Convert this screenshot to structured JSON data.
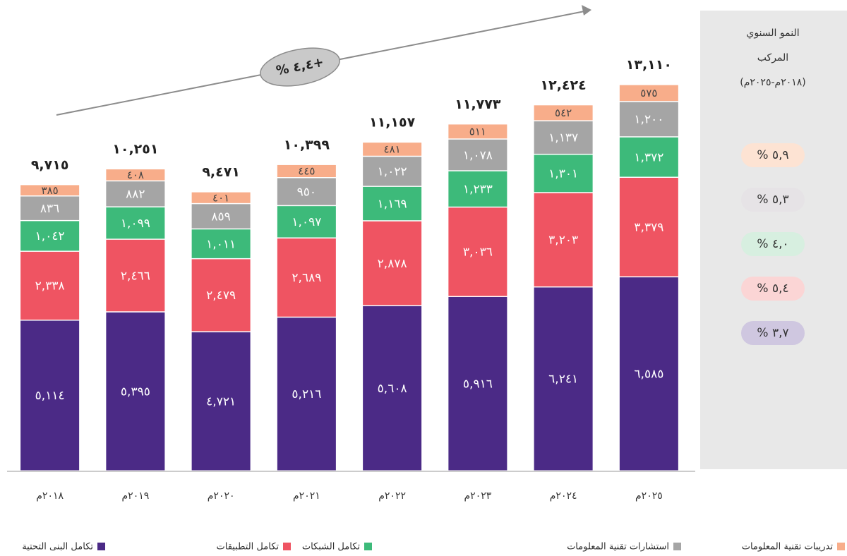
{
  "chart_data": {
    "type": "stacked_bar",
    "annotation": "% ٤,٤+",
    "categories": [
      "٢٠١٨م",
      "٢٠١٩م",
      "٢٠٢٠م",
      "٢٠٢١م",
      "٢٠٢٢م",
      "٢٠٢٣م",
      "٢٠٢٤م",
      "٢٠٢٥م"
    ],
    "ylim": [
      0,
      16000
    ],
    "series": [
      {
        "name": "تكامل البنى التحتية",
        "color": "#4b2a86",
        "cagr_label": "% ٣,٧",
        "cagr_color": "#cfc7e0",
        "values": [
          5114,
          5395,
          4721,
          5216,
          5608,
          5916,
          6241,
          6585
        ],
        "value_labels": [
          "٥,١١٤",
          "٥,٣٩٥",
          "٤,٧٢١",
          "٥,٢١٦",
          "٥,٦٠٨",
          "٥,٩١٦",
          "٦,٢٤١",
          "٦,٥٨٥"
        ]
      },
      {
        "name": "تكامل التطبيقات",
        "color": "#ef5462",
        "cagr_label": "% ٥,٤",
        "cagr_color": "#fbd5d5",
        "values": [
          2338,
          2466,
          2479,
          2689,
          2878,
          3036,
          3203,
          3379
        ],
        "value_labels": [
          "٢,٣٣٨",
          "٢,٤٦٦",
          "٢,٤٧٩",
          "٢,٦٨٩",
          "٢,٨٧٨",
          "٣,٠٣٦",
          "٣,٢٠٣",
          "٣,٣٧٩"
        ]
      },
      {
        "name": "تكامل الشبكات",
        "color": "#3dba7a",
        "cagr_label": "% ٤,٠",
        "cagr_color": "#d7efe0",
        "values": [
          1042,
          1099,
          1011,
          1097,
          1169,
          1233,
          1301,
          1372
        ],
        "value_labels": [
          "١,٠٤٢",
          "١,٠٩٩",
          "١,٠١١",
          "١,٠٩٧",
          "١,١٦٩",
          "١,٢٣٣",
          "١,٣٠١",
          "١,٣٧٢"
        ]
      },
      {
        "name": "استشارات تقنية المعلومات",
        "color": "#a5a5a5",
        "cagr_label": "% ٥,٣",
        "cagr_color": "#e6e3e6",
        "values": [
          836,
          882,
          859,
          950,
          1022,
          1078,
          1137,
          1200
        ],
        "value_labels": [
          "٨٣٦",
          "٨٨٢",
          "٨٥٩",
          "٩٥٠",
          "١,٠٢٢",
          "١,٠٧٨",
          "١,١٣٧",
          "١,٢٠٠"
        ]
      },
      {
        "name": "تدريبات تقنية المعلومات",
        "color": "#f8ad8a",
        "cagr_label": "% ٥,٩",
        "cagr_color": "#fde3d3",
        "values": [
          385,
          408,
          401,
          445,
          481,
          511,
          542,
          575
        ],
        "value_labels": [
          "٣٨٥",
          "٤٠٨",
          "٤٠١",
          "٤٤٥",
          "٤٨١",
          "٥١١",
          "٥٤٢",
          "٥٧٥"
        ]
      }
    ],
    "totals": [
      9715,
      10251,
      9471,
      10399,
      11157,
      11773,
      12424,
      13110
    ],
    "total_labels": [
      "٩,٧١٥",
      "١٠,٢٥١",
      "٩,٤٧١",
      "١٠,٣٩٩",
      "١١,١٥٧",
      "١١,٧٧٣",
      "١٢,٤٢٤",
      "١٣,١١٠"
    ],
    "panel": {
      "title_lines": [
        "النمو السنوي",
        "المركب",
        "(٢٠١٨م-٢٠٢٥م)"
      ]
    }
  }
}
